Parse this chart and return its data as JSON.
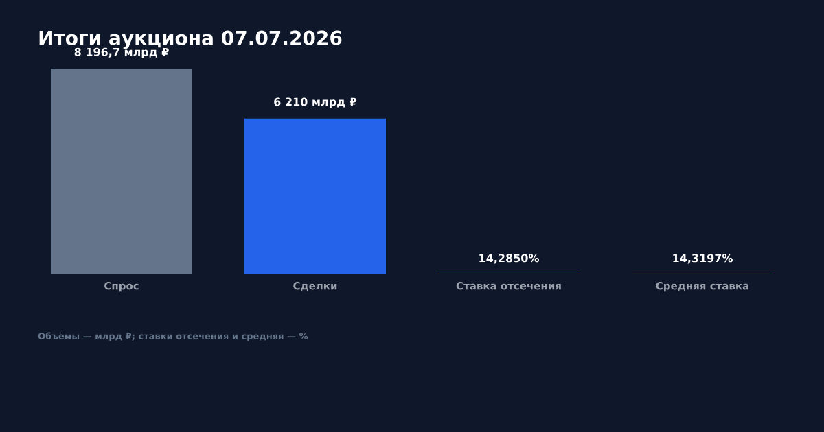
{
  "chart_data": {
    "type": "bar",
    "title": "Итоги аукциона 07.07.2026",
    "categories": [
      "Спрос",
      "Сделки",
      "Ставка отсечения",
      "Средняя ставка"
    ],
    "values": [
      8196.7,
      6210,
      14.285,
      14.3197
    ],
    "value_labels": [
      "8 196,7 млрд ₽",
      "6 210 млрд ₽",
      "14,2850%",
      "14,3197%"
    ],
    "colors": [
      "#64748b",
      "#2563eb",
      "#f59e0b",
      "#16a34a"
    ],
    "annotations": [
      "Объёмы — млрд ₽; ставки отсечения и средняя — %"
    ],
    "grid": false
  }
}
